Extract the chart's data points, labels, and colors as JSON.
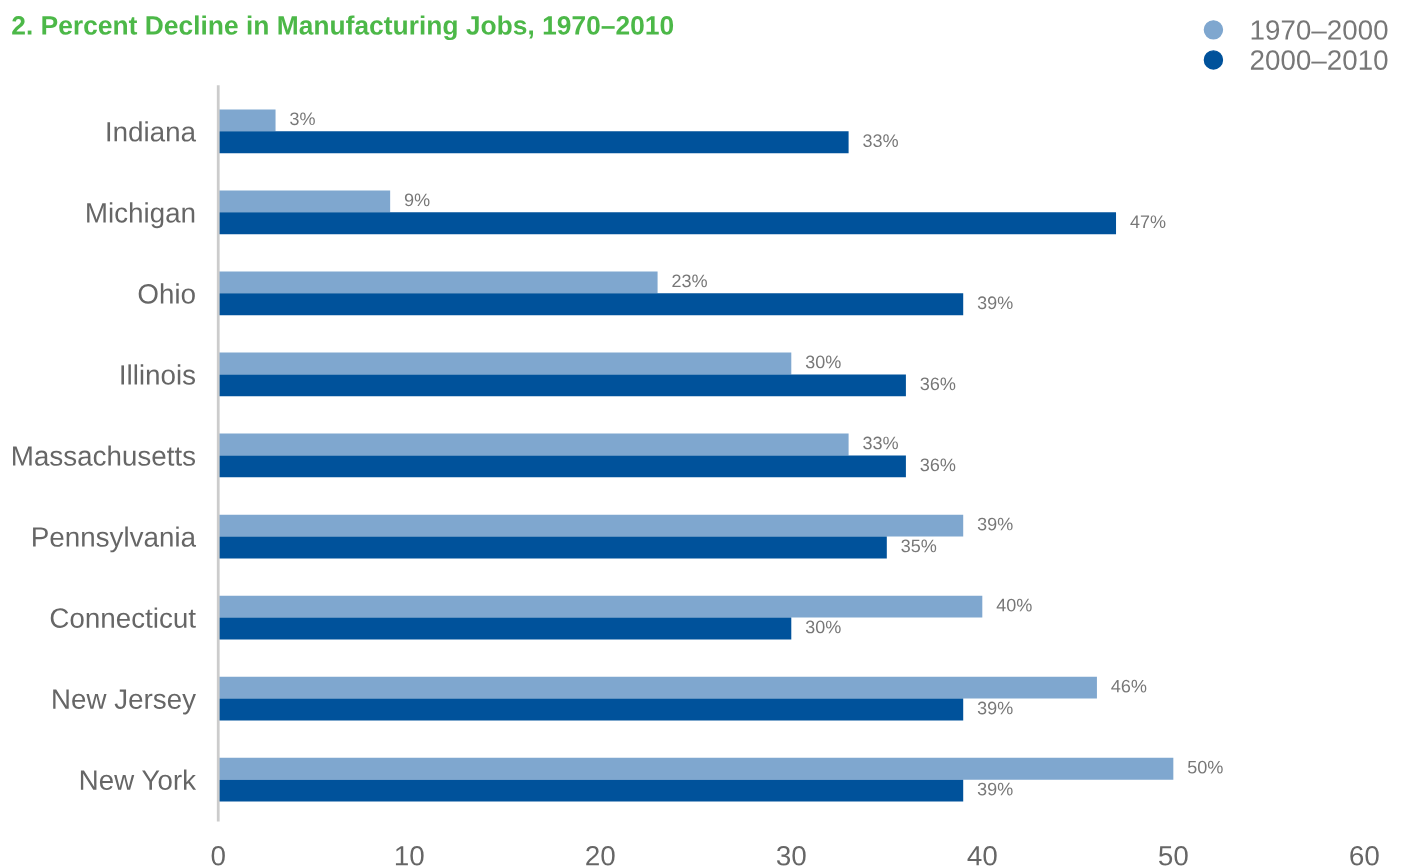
{
  "chart_data": {
    "type": "bar",
    "orientation": "horizontal",
    "title": "2. Percent Decline in Manufacturing Jobs, 1970–2010",
    "categories": [
      "Indiana",
      "Michigan",
      "Ohio",
      "Illinois",
      "Massachusetts",
      "Pennsylvania",
      "Connecticut",
      "New Jersey",
      "New York"
    ],
    "series": [
      {
        "name": "1970–2000",
        "color": "#7fa7cf",
        "values": [
          3,
          9,
          23,
          30,
          33,
          39,
          40,
          46,
          50
        ],
        "value_labels": [
          "3%",
          "9%",
          "23%",
          "30%",
          "33%",
          "39%",
          "40%",
          "46%",
          "50%"
        ]
      },
      {
        "name": "2000–2010",
        "color": "#00529b",
        "values": [
          33,
          47,
          39,
          36,
          36,
          35,
          30,
          39,
          39
        ],
        "value_labels": [
          "33%",
          "47%",
          "39%",
          "36%",
          "36%",
          "35%",
          "30%",
          "39%",
          "39%"
        ]
      }
    ],
    "xlim": [
      0,
      60
    ],
    "xticks": [
      0,
      10,
      20,
      30,
      40,
      50,
      60
    ],
    "grid": false,
    "legend": "top right"
  }
}
